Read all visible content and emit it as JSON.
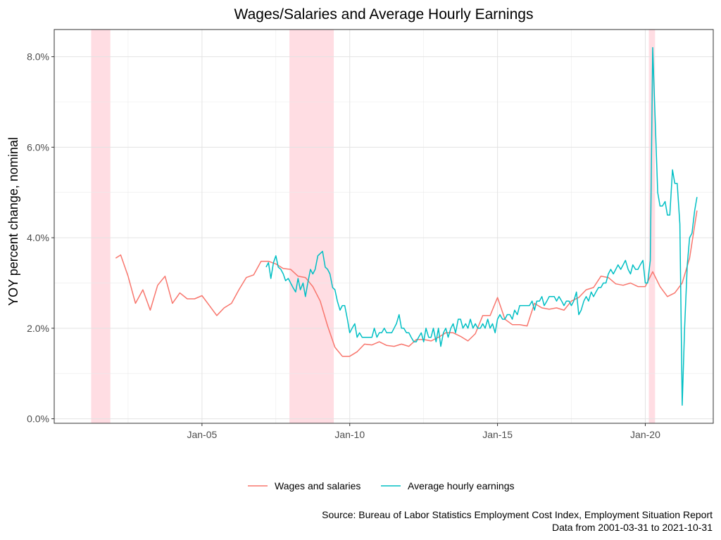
{
  "chart_data": {
    "type": "line",
    "title": "Wages/Salaries and Average Hourly Earnings",
    "xlabel": "",
    "ylabel": "YOY percent change, nominal",
    "x_ticks": [
      "Jan-05",
      "Jan-10",
      "Jan-15",
      "Jan-20"
    ],
    "x_tick_years": [
      2005,
      2010,
      2015,
      2020
    ],
    "y_ticks": [
      "0.0%",
      "2.0%",
      "4.0%",
      "6.0%",
      "8.0%"
    ],
    "y_tick_values": [
      0,
      2,
      4,
      6,
      8
    ],
    "xlim": [
      2000.0,
      2022.3
    ],
    "ylim": [
      -0.1,
      8.6
    ],
    "grid": true,
    "legend_position": "bottom",
    "recessions": [
      [
        2001.25,
        2001.9
      ],
      [
        2007.96,
        2009.46
      ],
      [
        2020.12,
        2020.33
      ]
    ],
    "series": [
      {
        "name": "Wages and salaries",
        "color": "#F8766D",
        "points": [
          [
            2002.08,
            3.55
          ],
          [
            2002.25,
            3.62
          ],
          [
            2002.5,
            3.15
          ],
          [
            2002.75,
            2.55
          ],
          [
            2003.0,
            2.85
          ],
          [
            2003.25,
            2.4
          ],
          [
            2003.5,
            2.95
          ],
          [
            2003.75,
            3.15
          ],
          [
            2004.0,
            2.55
          ],
          [
            2004.25,
            2.78
          ],
          [
            2004.5,
            2.65
          ],
          [
            2004.75,
            2.65
          ],
          [
            2005.0,
            2.72
          ],
          [
            2005.25,
            2.5
          ],
          [
            2005.5,
            2.28
          ],
          [
            2005.75,
            2.45
          ],
          [
            2006.0,
            2.55
          ],
          [
            2006.25,
            2.85
          ],
          [
            2006.5,
            3.12
          ],
          [
            2006.75,
            3.18
          ],
          [
            2007.0,
            3.48
          ],
          [
            2007.25,
            3.48
          ],
          [
            2007.5,
            3.42
          ],
          [
            2007.75,
            3.32
          ],
          [
            2008.0,
            3.3
          ],
          [
            2008.25,
            3.15
          ],
          [
            2008.5,
            3.12
          ],
          [
            2008.75,
            2.92
          ],
          [
            2009.0,
            2.6
          ],
          [
            2009.25,
            2.05
          ],
          [
            2009.5,
            1.58
          ],
          [
            2009.75,
            1.38
          ],
          [
            2010.0,
            1.38
          ],
          [
            2010.25,
            1.48
          ],
          [
            2010.5,
            1.65
          ],
          [
            2010.75,
            1.63
          ],
          [
            2011.0,
            1.7
          ],
          [
            2011.25,
            1.62
          ],
          [
            2011.5,
            1.6
          ],
          [
            2011.75,
            1.65
          ],
          [
            2012.0,
            1.6
          ],
          [
            2012.25,
            1.75
          ],
          [
            2012.5,
            1.75
          ],
          [
            2012.75,
            1.72
          ],
          [
            2013.0,
            1.8
          ],
          [
            2013.25,
            1.9
          ],
          [
            2013.5,
            1.9
          ],
          [
            2013.75,
            1.82
          ],
          [
            2014.0,
            1.72
          ],
          [
            2014.25,
            1.88
          ],
          [
            2014.5,
            2.28
          ],
          [
            2014.75,
            2.28
          ],
          [
            2015.0,
            2.68
          ],
          [
            2015.25,
            2.2
          ],
          [
            2015.5,
            2.08
          ],
          [
            2015.75,
            2.08
          ],
          [
            2016.0,
            2.05
          ],
          [
            2016.25,
            2.55
          ],
          [
            2016.5,
            2.45
          ],
          [
            2016.75,
            2.42
          ],
          [
            2017.0,
            2.45
          ],
          [
            2017.25,
            2.4
          ],
          [
            2017.5,
            2.6
          ],
          [
            2017.75,
            2.68
          ],
          [
            2018.0,
            2.85
          ],
          [
            2018.25,
            2.9
          ],
          [
            2018.5,
            3.15
          ],
          [
            2018.75,
            3.12
          ],
          [
            2019.0,
            2.98
          ],
          [
            2019.25,
            2.95
          ],
          [
            2019.5,
            3.0
          ],
          [
            2019.75,
            2.92
          ],
          [
            2020.0,
            2.92
          ],
          [
            2020.25,
            3.25
          ],
          [
            2020.5,
            2.92
          ],
          [
            2020.75,
            2.7
          ],
          [
            2021.0,
            2.78
          ],
          [
            2021.25,
            3.0
          ],
          [
            2021.5,
            3.55
          ],
          [
            2021.75,
            4.6
          ]
        ]
      },
      {
        "name": "Average hourly earnings",
        "color": "#00BFC4",
        "points": [
          [
            2007.17,
            3.35
          ],
          [
            2007.25,
            3.45
          ],
          [
            2007.33,
            3.1
          ],
          [
            2007.42,
            3.45
          ],
          [
            2007.5,
            3.6
          ],
          [
            2007.58,
            3.35
          ],
          [
            2007.67,
            3.3
          ],
          [
            2007.75,
            3.2
          ],
          [
            2007.83,
            3.05
          ],
          [
            2007.92,
            3.1
          ],
          [
            2008.0,
            3.0
          ],
          [
            2008.08,
            2.9
          ],
          [
            2008.17,
            2.8
          ],
          [
            2008.25,
            3.1
          ],
          [
            2008.33,
            2.85
          ],
          [
            2008.42,
            3.0
          ],
          [
            2008.5,
            2.7
          ],
          [
            2008.58,
            3.0
          ],
          [
            2008.67,
            3.3
          ],
          [
            2008.75,
            3.2
          ],
          [
            2008.83,
            3.3
          ],
          [
            2008.92,
            3.6
          ],
          [
            2009.0,
            3.65
          ],
          [
            2009.08,
            3.7
          ],
          [
            2009.17,
            3.35
          ],
          [
            2009.25,
            3.3
          ],
          [
            2009.33,
            3.2
          ],
          [
            2009.42,
            2.9
          ],
          [
            2009.5,
            2.85
          ],
          [
            2009.58,
            2.6
          ],
          [
            2009.67,
            2.4
          ],
          [
            2009.75,
            2.5
          ],
          [
            2009.83,
            2.5
          ],
          [
            2009.92,
            2.2
          ],
          [
            2010.0,
            1.9
          ],
          [
            2010.08,
            2.0
          ],
          [
            2010.17,
            2.1
          ],
          [
            2010.25,
            1.8
          ],
          [
            2010.33,
            1.9
          ],
          [
            2010.42,
            1.8
          ],
          [
            2010.5,
            1.8
          ],
          [
            2010.58,
            1.8
          ],
          [
            2010.67,
            1.8
          ],
          [
            2010.75,
            1.8
          ],
          [
            2010.83,
            2.0
          ],
          [
            2010.92,
            1.8
          ],
          [
            2011.0,
            1.9
          ],
          [
            2011.08,
            1.9
          ],
          [
            2011.17,
            2.0
          ],
          [
            2011.25,
            1.9
          ],
          [
            2011.33,
            1.9
          ],
          [
            2011.42,
            1.9
          ],
          [
            2011.5,
            2.0
          ],
          [
            2011.58,
            2.1
          ],
          [
            2011.67,
            2.3
          ],
          [
            2011.75,
            2.0
          ],
          [
            2011.83,
            2.0
          ],
          [
            2011.92,
            1.9
          ],
          [
            2012.0,
            1.9
          ],
          [
            2012.08,
            1.8
          ],
          [
            2012.17,
            1.7
          ],
          [
            2012.25,
            1.7
          ],
          [
            2012.33,
            1.8
          ],
          [
            2012.42,
            1.9
          ],
          [
            2012.5,
            1.7
          ],
          [
            2012.58,
            2.0
          ],
          [
            2012.67,
            1.8
          ],
          [
            2012.75,
            1.8
          ],
          [
            2012.83,
            2.0
          ],
          [
            2012.92,
            1.7
          ],
          [
            2013.0,
            2.0
          ],
          [
            2013.08,
            1.6
          ],
          [
            2013.17,
            1.9
          ],
          [
            2013.25,
            2.0
          ],
          [
            2013.33,
            1.8
          ],
          [
            2013.42,
            2.0
          ],
          [
            2013.5,
            2.1
          ],
          [
            2013.58,
            1.9
          ],
          [
            2013.67,
            2.2
          ],
          [
            2013.75,
            2.2
          ],
          [
            2013.83,
            2.0
          ],
          [
            2013.92,
            2.1
          ],
          [
            2014.0,
            2.0
          ],
          [
            2014.08,
            2.2
          ],
          [
            2014.17,
            2.0
          ],
          [
            2014.25,
            2.1
          ],
          [
            2014.33,
            2.0
          ],
          [
            2014.42,
            2.0
          ],
          [
            2014.5,
            2.1
          ],
          [
            2014.58,
            2.0
          ],
          [
            2014.67,
            2.2
          ],
          [
            2014.75,
            2.0
          ],
          [
            2014.83,
            2.1
          ],
          [
            2014.92,
            1.9
          ],
          [
            2015.0,
            2.2
          ],
          [
            2015.08,
            2.3
          ],
          [
            2015.17,
            2.2
          ],
          [
            2015.25,
            2.2
          ],
          [
            2015.33,
            2.3
          ],
          [
            2015.42,
            2.3
          ],
          [
            2015.5,
            2.2
          ],
          [
            2015.58,
            2.4
          ],
          [
            2015.67,
            2.3
          ],
          [
            2015.75,
            2.5
          ],
          [
            2015.83,
            2.5
          ],
          [
            2015.92,
            2.5
          ],
          [
            2016.0,
            2.5
          ],
          [
            2016.08,
            2.5
          ],
          [
            2016.17,
            2.6
          ],
          [
            2016.25,
            2.4
          ],
          [
            2016.33,
            2.6
          ],
          [
            2016.42,
            2.6
          ],
          [
            2016.5,
            2.7
          ],
          [
            2016.58,
            2.5
          ],
          [
            2016.67,
            2.6
          ],
          [
            2016.75,
            2.7
          ],
          [
            2016.83,
            2.7
          ],
          [
            2016.92,
            2.7
          ],
          [
            2017.0,
            2.6
          ],
          [
            2017.08,
            2.7
          ],
          [
            2017.17,
            2.6
          ],
          [
            2017.25,
            2.5
          ],
          [
            2017.33,
            2.6
          ],
          [
            2017.42,
            2.6
          ],
          [
            2017.5,
            2.5
          ],
          [
            2017.58,
            2.6
          ],
          [
            2017.67,
            2.8
          ],
          [
            2017.75,
            2.3
          ],
          [
            2017.83,
            2.4
          ],
          [
            2017.92,
            2.6
          ],
          [
            2018.0,
            2.7
          ],
          [
            2018.08,
            2.6
          ],
          [
            2018.17,
            2.8
          ],
          [
            2018.25,
            2.7
          ],
          [
            2018.33,
            2.8
          ],
          [
            2018.42,
            2.9
          ],
          [
            2018.5,
            2.9
          ],
          [
            2018.58,
            3.0
          ],
          [
            2018.67,
            3.0
          ],
          [
            2018.75,
            3.2
          ],
          [
            2018.83,
            3.3
          ],
          [
            2018.92,
            3.2
          ],
          [
            2019.0,
            3.3
          ],
          [
            2019.08,
            3.4
          ],
          [
            2019.17,
            3.3
          ],
          [
            2019.25,
            3.4
          ],
          [
            2019.33,
            3.5
          ],
          [
            2019.42,
            3.3
          ],
          [
            2019.5,
            3.2
          ],
          [
            2019.58,
            3.4
          ],
          [
            2019.67,
            3.3
          ],
          [
            2019.75,
            3.3
          ],
          [
            2019.83,
            3.4
          ],
          [
            2019.92,
            3.5
          ],
          [
            2020.0,
            3.0
          ],
          [
            2020.08,
            3.0
          ],
          [
            2020.17,
            3.5
          ],
          [
            2020.25,
            8.2
          ],
          [
            2020.33,
            6.7
          ],
          [
            2020.42,
            5.0
          ],
          [
            2020.5,
            4.7
          ],
          [
            2020.58,
            4.7
          ],
          [
            2020.67,
            4.8
          ],
          [
            2020.75,
            4.5
          ],
          [
            2020.83,
            4.5
          ],
          [
            2020.92,
            5.5
          ],
          [
            2021.0,
            5.2
          ],
          [
            2021.08,
            5.2
          ],
          [
            2021.17,
            4.3
          ],
          [
            2021.25,
            0.3
          ],
          [
            2021.33,
            2.0
          ],
          [
            2021.42,
            3.4
          ],
          [
            2021.5,
            4.0
          ],
          [
            2021.58,
            4.1
          ],
          [
            2021.67,
            4.6
          ],
          [
            2021.75,
            4.9
          ]
        ]
      }
    ],
    "caption_lines": [
      "Source: Bureau of Labor Statistics Employment Cost Index, Employment Situation Report",
      "Data from 2001-03-31 to 2021-10-31"
    ]
  }
}
